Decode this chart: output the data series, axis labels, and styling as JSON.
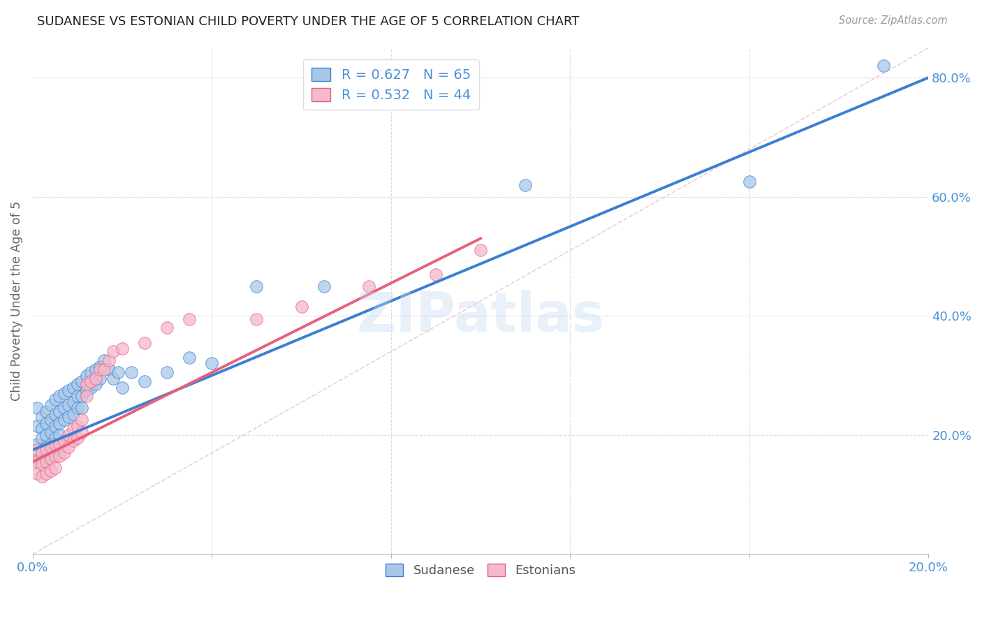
{
  "title": "SUDANESE VS ESTONIAN CHILD POVERTY UNDER THE AGE OF 5 CORRELATION CHART",
  "source": "Source: ZipAtlas.com",
  "ylabel": "Child Poverty Under the Age of 5",
  "xlim": [
    0.0,
    0.2
  ],
  "ylim": [
    0.0,
    0.85
  ],
  "sudanese_color": "#a8c8e8",
  "estonian_color": "#f5b8cc",
  "trend_blue": "#3a7fd5",
  "trend_pink": "#e8607a",
  "ref_line_color": "#cccccc",
  "watermark": "ZIPatlas",
  "bg_color": "#ffffff",
  "grid_color": "#dddddd",
  "tick_color": "#4a90d9",
  "axis_label_color": "#666666",
  "title_color": "#222222",
  "sudanese_x": [
    0.001,
    0.001,
    0.001,
    0.001,
    0.002,
    0.002,
    0.002,
    0.002,
    0.002,
    0.003,
    0.003,
    0.003,
    0.003,
    0.003,
    0.004,
    0.004,
    0.004,
    0.004,
    0.005,
    0.005,
    0.005,
    0.005,
    0.005,
    0.006,
    0.006,
    0.006,
    0.006,
    0.007,
    0.007,
    0.007,
    0.008,
    0.008,
    0.008,
    0.009,
    0.009,
    0.009,
    0.01,
    0.01,
    0.01,
    0.011,
    0.011,
    0.011,
    0.012,
    0.012,
    0.013,
    0.013,
    0.014,
    0.014,
    0.015,
    0.015,
    0.016,
    0.017,
    0.018,
    0.019,
    0.02,
    0.022,
    0.025,
    0.03,
    0.035,
    0.04,
    0.05,
    0.065,
    0.11,
    0.16,
    0.19
  ],
  "sudanese_y": [
    0.245,
    0.215,
    0.185,
    0.16,
    0.23,
    0.21,
    0.195,
    0.175,
    0.155,
    0.24,
    0.22,
    0.2,
    0.18,
    0.16,
    0.25,
    0.225,
    0.205,
    0.185,
    0.26,
    0.235,
    0.215,
    0.195,
    0.17,
    0.265,
    0.24,
    0.22,
    0.2,
    0.27,
    0.245,
    0.225,
    0.275,
    0.25,
    0.23,
    0.28,
    0.255,
    0.235,
    0.285,
    0.265,
    0.245,
    0.29,
    0.265,
    0.245,
    0.3,
    0.275,
    0.305,
    0.28,
    0.31,
    0.285,
    0.315,
    0.295,
    0.325,
    0.31,
    0.295,
    0.305,
    0.28,
    0.305,
    0.29,
    0.305,
    0.33,
    0.32,
    0.45,
    0.45,
    0.62,
    0.625,
    0.82
  ],
  "estonian_x": [
    0.001,
    0.001,
    0.001,
    0.002,
    0.002,
    0.002,
    0.003,
    0.003,
    0.003,
    0.004,
    0.004,
    0.004,
    0.005,
    0.005,
    0.005,
    0.006,
    0.006,
    0.007,
    0.007,
    0.008,
    0.008,
    0.009,
    0.009,
    0.01,
    0.01,
    0.011,
    0.011,
    0.012,
    0.012,
    0.013,
    0.014,
    0.015,
    0.016,
    0.017,
    0.018,
    0.02,
    0.025,
    0.03,
    0.035,
    0.05,
    0.06,
    0.075,
    0.09,
    0.1
  ],
  "estonian_y": [
    0.175,
    0.155,
    0.135,
    0.17,
    0.15,
    0.13,
    0.175,
    0.155,
    0.135,
    0.18,
    0.16,
    0.14,
    0.185,
    0.165,
    0.145,
    0.185,
    0.165,
    0.19,
    0.17,
    0.2,
    0.18,
    0.21,
    0.19,
    0.215,
    0.195,
    0.225,
    0.205,
    0.285,
    0.265,
    0.29,
    0.295,
    0.31,
    0.31,
    0.325,
    0.34,
    0.345,
    0.355,
    0.38,
    0.395,
    0.395,
    0.415,
    0.45,
    0.47,
    0.51
  ],
  "blue_trend_x0": 0.0,
  "blue_trend_y0": 0.175,
  "blue_trend_x1": 0.2,
  "blue_trend_y1": 0.8,
  "pink_trend_x0": 0.0,
  "pink_trend_y0": 0.155,
  "pink_trend_x1": 0.1,
  "pink_trend_y1": 0.53
}
